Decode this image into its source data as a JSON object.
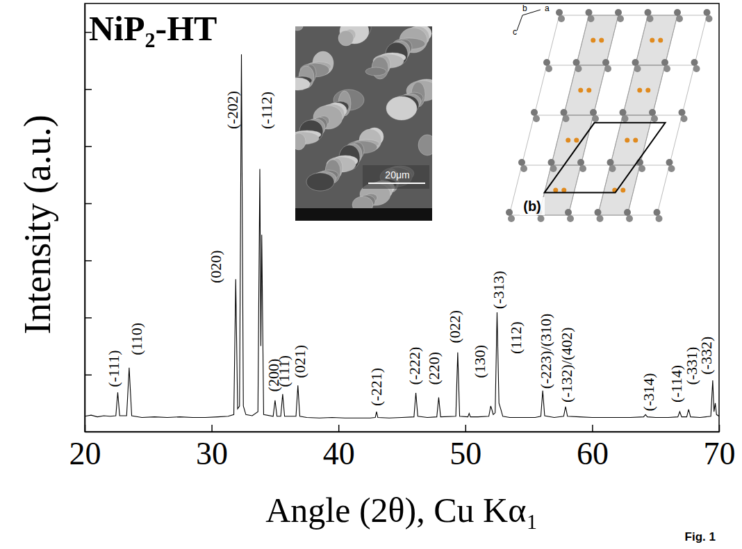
{
  "chart_data": {
    "type": "line",
    "title": "NiP₂-HT",
    "x_label": "Angle (2θ), Cu Kα₁",
    "y_label": "Intensity (a.u.)",
    "x": [
      20,
      20.5,
      21,
      21.5,
      22,
      22.45,
      22.6,
      22.75,
      23.3,
      23.5,
      23.7,
      24.5,
      25.5,
      26.5,
      27.5,
      28.5,
      29.5,
      30.5,
      31.3,
      31.75,
      31.9,
      32.05,
      32.2,
      32.35,
      32.5,
      32.7,
      33.2,
      33.65,
      33.8,
      33.88,
      33.95,
      34.1,
      34.85,
      35,
      35.15,
      35.45,
      35.6,
      35.75,
      36.65,
      36.8,
      36.95,
      37.5,
      38.5,
      39.5,
      40.5,
      41.5,
      42.5,
      42.9,
      43,
      43.1,
      44,
      45,
      45.95,
      46.1,
      46.25,
      47,
      47.75,
      47.9,
      48.05,
      49.25,
      49.4,
      49.55,
      50.2,
      50.3,
      50.4,
      51,
      51.85,
      52,
      52.1,
      52.2,
      52.35,
      52.5,
      52.65,
      52.8,
      52.95,
      53.5,
      54.5,
      55.5,
      55.95,
      56.1,
      56.25,
      57,
      57.75,
      57.9,
      58.05,
      59,
      60,
      61,
      62,
      63,
      64.05,
      64.2,
      64.35,
      65,
      66,
      66.75,
      66.9,
      67.05,
      67.45,
      67.6,
      67.75,
      68.5,
      69.35,
      69.5,
      69.6,
      69.7,
      69.8,
      70
    ],
    "values": [
      0.27,
      0.29,
      0.26,
      0.28,
      0.27,
      0.28,
      0.69,
      0.28,
      0.28,
      1.12,
      0.28,
      0.25,
      0.26,
      0.25,
      0.26,
      0.25,
      0.25,
      0.26,
      0.27,
      0.3,
      2.67,
      0.4,
      0.45,
      6.61,
      0.45,
      0.3,
      0.28,
      0.35,
      4.6,
      1.5,
      3.45,
      0.3,
      0.27,
      0.55,
      0.27,
      0.27,
      0.66,
      0.27,
      0.27,
      0.81,
      0.27,
      0.25,
      0.24,
      0.25,
      0.24,
      0.24,
      0.24,
      0.25,
      0.35,
      0.25,
      0.24,
      0.25,
      0.26,
      0.68,
      0.27,
      0.25,
      0.26,
      0.6,
      0.26,
      0.27,
      1.39,
      0.27,
      0.26,
      0.32,
      0.26,
      0.26,
      0.27,
      0.45,
      0.38,
      0.3,
      0.33,
      2.09,
      0.5,
      0.39,
      0.27,
      0.25,
      0.25,
      0.25,
      0.27,
      0.72,
      0.28,
      0.25,
      0.27,
      0.44,
      0.27,
      0.26,
      0.25,
      0.25,
      0.25,
      0.25,
      0.26,
      0.3,
      0.26,
      0.25,
      0.25,
      0.26,
      0.35,
      0.26,
      0.26,
      0.39,
      0.26,
      0.25,
      0.27,
      0.9,
      0.35,
      0.5,
      0.3,
      0.27
    ],
    "color": "#000000",
    "xlim": [
      20,
      70
    ],
    "ylim": [
      0,
      7.5
    ],
    "xticks": [
      20,
      30,
      40,
      50,
      60,
      70
    ],
    "yticks": [
      1,
      2,
      3,
      4,
      5,
      6,
      7
    ],
    "tick_labels": "x",
    "annotations": [
      {
        "text": "(-111)",
        "x": 22.25,
        "y": 0.78
      },
      {
        "text": "(110)",
        "x": 24.05,
        "y": 1.34
      },
      {
        "text": "(020)",
        "x": 30.3,
        "y": 2.6
      },
      {
        "text": "(-202)",
        "x": 31.65,
        "y": 5.3
      },
      {
        "text": "(-112)",
        "x": 34.3,
        "y": 5.3
      },
      {
        "text": "(200)",
        "x": 34.85,
        "y": 0.7
      },
      {
        "text": "(111)",
        "x": 35.7,
        "y": 0.78
      },
      {
        "text": "(021)",
        "x": 36.95,
        "y": 0.94
      },
      {
        "text": "(-221)",
        "x": 42.95,
        "y": 0.45
      },
      {
        "text": "(-222)",
        "x": 45.95,
        "y": 0.82
      },
      {
        "text": "(220)",
        "x": 47.5,
        "y": 0.82
      },
      {
        "text": "(022)",
        "x": 49.15,
        "y": 1.55
      },
      {
        "text": "(130)",
        "x": 51.1,
        "y": 0.94
      },
      {
        "text": "(-313)",
        "x": 52.6,
        "y": 2.15
      },
      {
        "text": "(112)",
        "x": 53.95,
        "y": 1.36
      },
      {
        "text": "(-223)/(310)",
        "x": 56.35,
        "y": 0.75
      },
      {
        "text": "(-132)/(402)",
        "x": 57.95,
        "y": 0.51
      },
      {
        "text": "(-314)",
        "x": 64.45,
        "y": 0.36
      },
      {
        "text": "(-114)",
        "x": 66.6,
        "y": 0.51
      },
      {
        "text": "(-331)",
        "x": 67.8,
        "y": 0.82
      },
      {
        "text": "(-332)",
        "x": 69.0,
        "y": 1.0
      }
    ]
  },
  "insets": {
    "sem": {
      "scale_bar": "20μm"
    },
    "structure": {
      "axes": [
        "b",
        "a",
        "c"
      ],
      "panel": "(b)"
    }
  },
  "figure_label": "Fig. 1"
}
